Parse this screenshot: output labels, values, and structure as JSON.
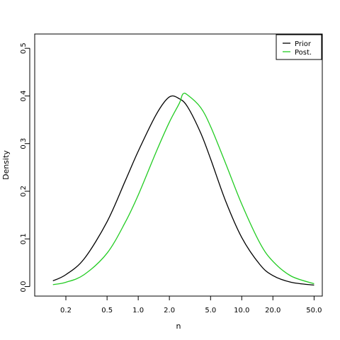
{
  "chart_data": {
    "type": "line",
    "xlabel": "n",
    "ylabel": "Density",
    "x_scale": "log",
    "xlim": [
      0.1,
      60
    ],
    "ylim": [
      -0.02,
      0.53
    ],
    "x_ticks": [
      {
        "value": 0.2,
        "label": "0.2"
      },
      {
        "value": 0.5,
        "label": "0.5"
      },
      {
        "value": 1.0,
        "label": "1.0"
      },
      {
        "value": 2.0,
        "label": "2.0"
      },
      {
        "value": 5.0,
        "label": "5.0"
      },
      {
        "value": 10.0,
        "label": "10.0"
      },
      {
        "value": 20.0,
        "label": "20.0"
      },
      {
        "value": 50.0,
        "label": "50.0"
      }
    ],
    "y_ticks": [
      {
        "value": 0.0,
        "label": "0.0"
      },
      {
        "value": 0.1,
        "label": "0.1"
      },
      {
        "value": 0.2,
        "label": "0.2"
      },
      {
        "value": 0.3,
        "label": "0.3"
      },
      {
        "value": 0.4,
        "label": "0.4"
      },
      {
        "value": 0.5,
        "label": "0.5"
      }
    ],
    "grid": false,
    "legend": "top-right",
    "series": [
      {
        "name": "Prior",
        "color": "#000000",
        "x": [
          0.15,
          0.2,
          0.3,
          0.5,
          0.75,
          1.0,
          1.5,
          2.0,
          2.5,
          3.0,
          4.0,
          5.0,
          7.0,
          10.0,
          15.0,
          20.0,
          30.0,
          50.0
        ],
        "y": [
          0.012,
          0.025,
          0.058,
          0.136,
          0.222,
          0.284,
          0.362,
          0.398,
          0.394,
          0.377,
          0.323,
          0.268,
          0.179,
          0.103,
          0.046,
          0.023,
          0.009,
          0.003
        ]
      },
      {
        "name": "Post.",
        "color": "#22cc22",
        "x": [
          0.15,
          0.2,
          0.3,
          0.5,
          0.75,
          1.0,
          1.5,
          2.0,
          2.5,
          2.7,
          3.0,
          4.0,
          5.0,
          7.0,
          10.0,
          15.0,
          20.0,
          30.0,
          50.0
        ],
        "y": [
          0.004,
          0.009,
          0.025,
          0.07,
          0.135,
          0.192,
          0.284,
          0.345,
          0.385,
          0.404,
          0.402,
          0.376,
          0.336,
          0.258,
          0.173,
          0.091,
          0.053,
          0.022,
          0.006
        ]
      }
    ]
  }
}
